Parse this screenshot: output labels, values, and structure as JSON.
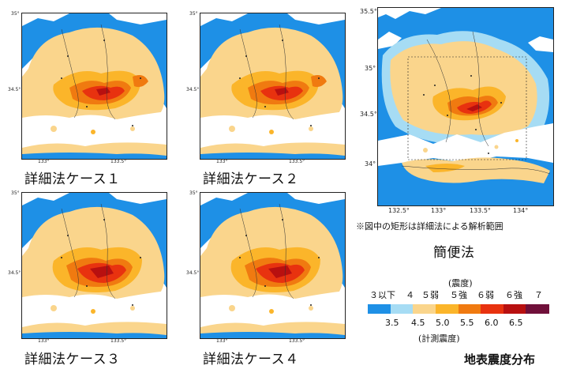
{
  "maps": [
    {
      "caption": "詳細法ケース１",
      "y_ticks": [
        "35°",
        "34.5°"
      ],
      "x_ticks": [
        "133°",
        "133.5°"
      ]
    },
    {
      "caption": "詳細法ケース２",
      "y_ticks": [
        "35°",
        "34.5°"
      ],
      "x_ticks": [
        "133°",
        "133.5°"
      ]
    },
    {
      "caption": "詳細法ケース３",
      "y_ticks": [
        "35°",
        "34.5°"
      ],
      "x_ticks": [
        "133°",
        "133.5°"
      ]
    },
    {
      "caption": "詳細法ケース４",
      "y_ticks": [
        "35°",
        "34.5°"
      ],
      "x_ticks": [
        "133°",
        "133.5°"
      ]
    }
  ],
  "simple_map": {
    "caption": "簡便法",
    "note": "※図中の矩形は詳細法による解析範囲",
    "y_ticks": [
      "35.5°",
      "35°",
      "34.5°",
      "34°"
    ],
    "x_ticks": [
      "132.5°",
      "133°",
      "133.5°",
      "134°"
    ]
  },
  "legend": {
    "class_title": "(震度)",
    "classes": [
      "３以下",
      "４",
      "５弱",
      "５強",
      "６弱",
      "６強",
      "７"
    ],
    "values": [
      "3.5",
      "4.5",
      "5.0",
      "5.5",
      "6.0",
      "6.5"
    ],
    "value_title": "(計測震度)",
    "colors": [
      "#1e90e6",
      "#a6dcf4",
      "#fad58c",
      "#fbb52a",
      "#f07a10",
      "#e8320f",
      "#b81010",
      "#70103a"
    ]
  },
  "title": "地表震度分布"
}
